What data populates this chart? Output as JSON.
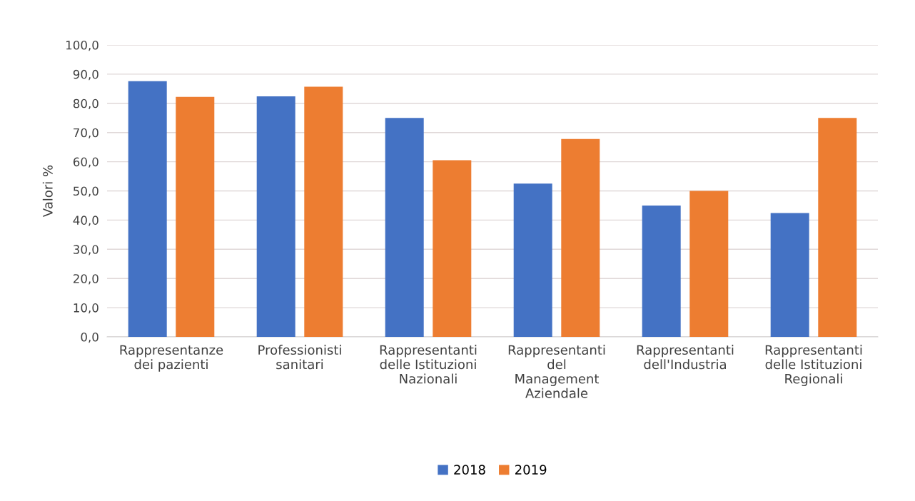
{
  "chart_data": {
    "type": "bar",
    "categories": [
      "Rappresentanze\ndei pazienti",
      "Professionisti\nsanitari",
      "Rappresentanti\ndelle Istituzioni\nNazionali",
      "Rappresentanti\ndel\nManagement\nAziendale",
      "Rappresentanti\ndell'Industria",
      "Rappresentanti\ndelle Istituzioni\nRegionali"
    ],
    "series": [
      {
        "name": "2018",
        "color": "#4472c4",
        "values": [
          87.6,
          82.4,
          75.0,
          52.5,
          45.0,
          42.4
        ]
      },
      {
        "name": "2019",
        "color": "#ed7d31",
        "values": [
          82.2,
          85.7,
          60.5,
          67.8,
          50.0,
          75.0
        ]
      }
    ],
    "ylabel": "Valori %",
    "ylim": [
      0,
      100
    ],
    "yticks": [
      {
        "value": 0,
        "label": "0,0"
      },
      {
        "value": 10,
        "label": "10,0"
      },
      {
        "value": 20,
        "label": "20,0"
      },
      {
        "value": 30,
        "label": "30,0"
      },
      {
        "value": 40,
        "label": "40,0"
      },
      {
        "value": 50,
        "label": "50,0"
      },
      {
        "value": 60,
        "label": "60,0"
      },
      {
        "value": 70,
        "label": "70,0"
      },
      {
        "value": 80,
        "label": "80,0"
      },
      {
        "value": 90,
        "label": "90,0"
      },
      {
        "value": 100,
        "label": "100,0"
      }
    ],
    "grid": "y",
    "legend": "bottom"
  }
}
